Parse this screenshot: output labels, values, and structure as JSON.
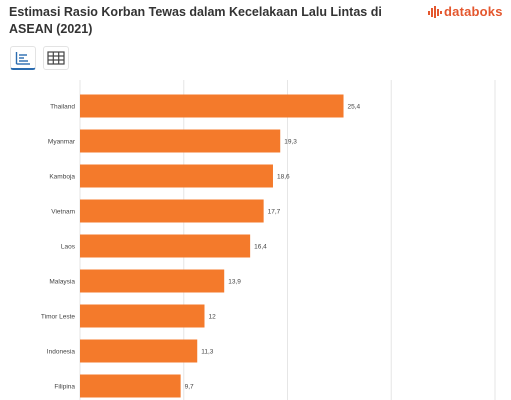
{
  "header": {
    "title": "Estimasi Rasio Korban Tewas dalam Kecelakaan Lalu Lintas di ASEAN (2021)",
    "logo_text": "databoks"
  },
  "toolbar": {
    "chart_view_icon": "bar-chart-icon",
    "table_view_icon": "table-grid-icon"
  },
  "colors": {
    "bar": "#f47a2b",
    "accent": "#2b6cb0",
    "logo": "#e4572e"
  },
  "chart_data": {
    "type": "bar",
    "orientation": "horizontal",
    "title": "Estimasi Rasio Korban Tewas dalam Kecelakaan Lalu Lintas di ASEAN (2021)",
    "categories": [
      "Thailand",
      "Myanmar",
      "Kamboja",
      "Vietnam",
      "Laos",
      "Malaysia",
      "Timor Leste",
      "Indonesia",
      "Filipina"
    ],
    "values": [
      25.4,
      19.3,
      18.6,
      17.7,
      16.4,
      13.9,
      12,
      11.3,
      9.7
    ],
    "data_labels": [
      "25,4",
      "19,3",
      "18,6",
      "17,7",
      "16,4",
      "13,9",
      "12",
      "11,3",
      "9,7"
    ],
    "xlim": [
      0,
      40
    ],
    "grid": true,
    "legend": "none"
  }
}
